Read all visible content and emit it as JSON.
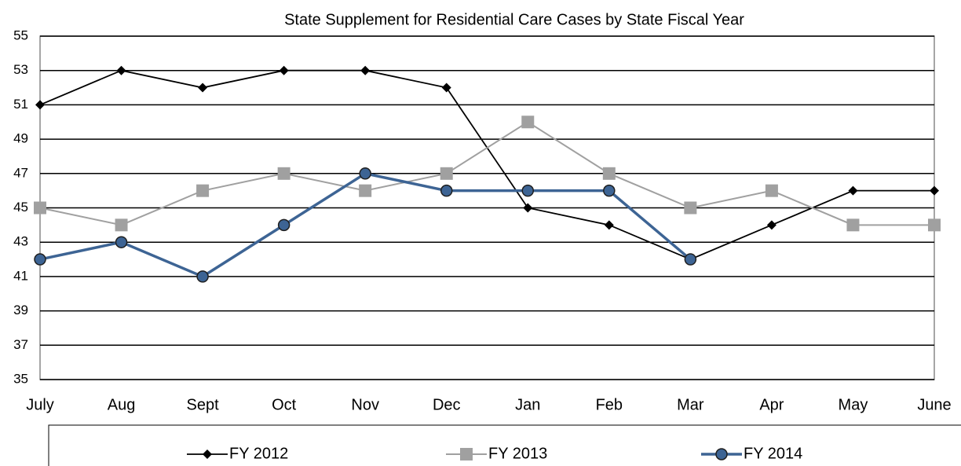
{
  "chart_data": {
    "type": "line",
    "title": "State Supplement for Residential Care Cases by State Fiscal Year",
    "categories": [
      "July",
      "Aug",
      "Sept",
      "Oct",
      "Nov",
      "Dec",
      "Jan",
      "Feb",
      "Mar",
      "Apr",
      "May",
      "June"
    ],
    "series": [
      {
        "name": "FY 2012",
        "color": "#000000",
        "marker": "diamond",
        "values": [
          51,
          53,
          52,
          53,
          53,
          52,
          45,
          44,
          42,
          44,
          46,
          46
        ]
      },
      {
        "name": "FY 2013",
        "color": "#a0a0a0",
        "marker": "square",
        "values": [
          45,
          44,
          46,
          47,
          46,
          47,
          50,
          47,
          45,
          46,
          44,
          44
        ]
      },
      {
        "name": "FY 2014",
        "color": "#3d6494",
        "marker": "circle",
        "values": [
          42,
          43,
          41,
          44,
          47,
          46,
          46,
          46,
          42,
          null,
          null,
          null
        ]
      }
    ],
    "ylim": [
      35,
      55
    ],
    "yticks": [
      35,
      37,
      39,
      41,
      43,
      45,
      47,
      49,
      51,
      53,
      55
    ],
    "grid": true,
    "legend": "bottom"
  }
}
